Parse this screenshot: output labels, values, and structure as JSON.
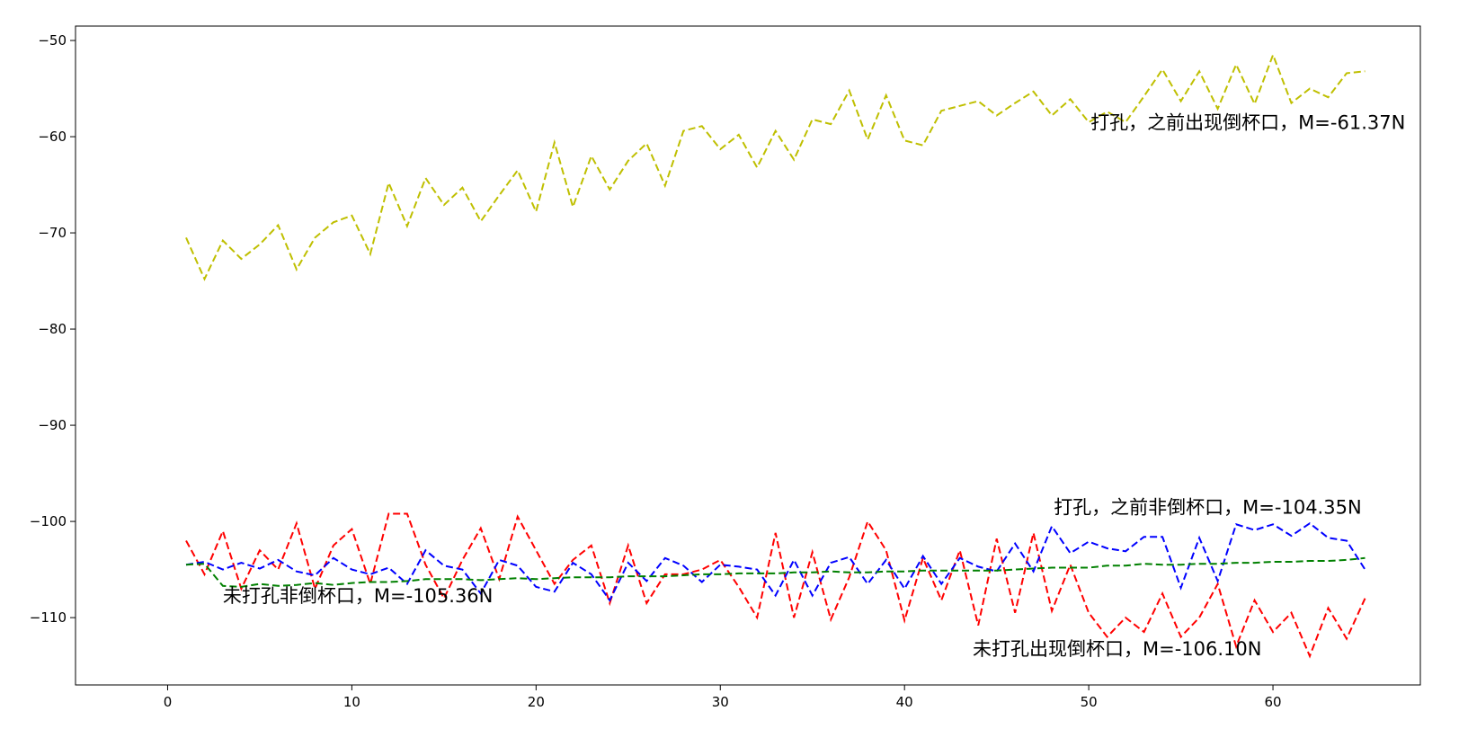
{
  "chart_data": {
    "type": "line",
    "title": "",
    "xlabel": "",
    "ylabel": "",
    "xlim": [
      -5,
      68
    ],
    "ylim": [
      -117,
      -48.5
    ],
    "xticks": [
      0,
      10,
      20,
      30,
      40,
      50,
      60
    ],
    "yticks": [
      -50,
      -60,
      -70,
      -80,
      -90,
      -100,
      -110
    ],
    "grid": false,
    "line_style": "dashed",
    "colors": {
      "yellow": "#bfbf00",
      "red": "#ff0000",
      "blue": "#0000ff",
      "green": "#008000"
    },
    "x": [
      1,
      2,
      3,
      4,
      5,
      6,
      7,
      8,
      9,
      10,
      11,
      12,
      13,
      14,
      15,
      16,
      17,
      18,
      19,
      20,
      21,
      22,
      23,
      24,
      25,
      26,
      27,
      28,
      29,
      30,
      31,
      32,
      33,
      34,
      35,
      36,
      37,
      38,
      39,
      40,
      41,
      42,
      43,
      44,
      45,
      46,
      47,
      48,
      49,
      50,
      51,
      52,
      53,
      54,
      55,
      56,
      57,
      58,
      59,
      60,
      61,
      62,
      63,
      64,
      65
    ],
    "series": [
      {
        "color_key": "yellow",
        "values": [
          -70.5,
          -74.8,
          -70.8,
          -72.7,
          -71.2,
          -69.2,
          -73.8,
          -70.5,
          -68.9,
          -68.2,
          -72.2,
          -64.8,
          -69.3,
          -64.3,
          -67.1,
          -65.3,
          -68.8,
          -66.1,
          -63.5,
          -67.8,
          -60.6,
          -67.3,
          -62.0,
          -65.5,
          -62.5,
          -60.7,
          -65.1,
          -59.4,
          -58.9,
          -61.3,
          -59.8,
          -63.2,
          -59.4,
          -62.4,
          -58.2,
          -58.7,
          -55.2,
          -60.3,
          -55.7,
          -60.4,
          -60.9,
          -57.3,
          -56.8,
          -56.3,
          -57.8,
          -56.5,
          -55.3,
          -57.8,
          -56.1,
          -58.5,
          -57.4,
          -58.5,
          -55.8,
          -53.0,
          -56.3,
          -53.2,
          -57.1,
          -52.5,
          -56.6,
          -51.5,
          -56.5,
          -55.0,
          -55.9,
          -53.4,
          -53.2
        ]
      },
      {
        "color_key": "red",
        "values": [
          -102.0,
          -105.5,
          -101.0,
          -107.0,
          -103.0,
          -105.0,
          -100.2,
          -107.0,
          -102.5,
          -100.8,
          -106.5,
          -99.2,
          -99.2,
          -104.5,
          -108.0,
          -104.0,
          -100.7,
          -106.0,
          -99.5,
          -103.0,
          -106.5,
          -104.0,
          -102.5,
          -108.5,
          -102.5,
          -108.5,
          -105.5,
          -105.5,
          -105.0,
          -104.0,
          -106.8,
          -110.0,
          -101.2,
          -110.0,
          -103.2,
          -110.2,
          -105.8,
          -100.0,
          -103.0,
          -110.3,
          -103.8,
          -108.2,
          -103.0,
          -110.8,
          -101.8,
          -109.5,
          -101.2,
          -109.3,
          -104.5,
          -109.5,
          -112.0,
          -110.0,
          -111.5,
          -107.5,
          -112.0,
          -110.0,
          -106.5,
          -113.0,
          -108.2,
          -111.5,
          -109.5,
          -114.0,
          -109.0,
          -112.2,
          -108.0
        ]
      },
      {
        "color_key": "blue",
        "values": [
          -104.5,
          -104.2,
          -105.0,
          -104.3,
          -104.9,
          -104.0,
          -105.2,
          -105.6,
          -103.8,
          -105.0,
          -105.5,
          -104.8,
          -106.5,
          -103.0,
          -104.6,
          -105.0,
          -107.5,
          -104.0,
          -104.6,
          -106.8,
          -107.3,
          -104.3,
          -105.5,
          -108.2,
          -104.3,
          -106.2,
          -103.8,
          -104.6,
          -106.3,
          -104.5,
          -104.7,
          -105.0,
          -107.7,
          -104.0,
          -107.7,
          -104.3,
          -103.7,
          -106.5,
          -104.0,
          -107.0,
          -103.6,
          -106.5,
          -103.8,
          -104.7,
          -105.2,
          -102.3,
          -105.2,
          -100.5,
          -103.3,
          -102.1,
          -102.8,
          -103.1,
          -101.6,
          -101.6,
          -106.9,
          -101.7,
          -106.2,
          -100.3,
          -100.9,
          -100.3,
          -101.5,
          -100.2,
          -101.7,
          -102.0,
          -105.0
        ]
      },
      {
        "color_key": "green",
        "values": [
          -104.5,
          -104.4,
          -106.7,
          -106.8,
          -106.5,
          -106.7,
          -106.6,
          -106.4,
          -106.6,
          -106.4,
          -106.3,
          -106.3,
          -106.2,
          -106.0,
          -106.0,
          -106.0,
          -106.1,
          -106.0,
          -105.9,
          -106.0,
          -105.9,
          -105.8,
          -105.8,
          -105.8,
          -105.7,
          -105.7,
          -105.7,
          -105.6,
          -105.5,
          -105.5,
          -105.4,
          -105.4,
          -105.4,
          -105.3,
          -105.3,
          -105.2,
          -105.3,
          -105.3,
          -105.2,
          -105.2,
          -105.1,
          -105.1,
          -105.1,
          -105.1,
          -105.1,
          -105.0,
          -104.9,
          -104.8,
          -104.8,
          -104.8,
          -104.6,
          -104.6,
          -104.4,
          -104.5,
          -104.5,
          -104.4,
          -104.4,
          -104.3,
          -104.3,
          -104.2,
          -104.2,
          -104.1,
          -104.1,
          -104.0,
          -103.8
        ]
      }
    ],
    "annotations": [
      {
        "text": "打孔，之前出现倒杯口，M=-61.37N",
        "x": 50.1,
        "y": -59.2
      },
      {
        "text": "打孔，之前非倒杯口，M=-104.35N",
        "x": 48.1,
        "y": -99.2
      },
      {
        "text": "未打孔非倒杯口，M=-105.36N",
        "x": 3.0,
        "y": -108.4
      },
      {
        "text": "未打孔出现倒杯口，M=-106.10N",
        "x": 43.7,
        "y": -113.9
      }
    ]
  }
}
